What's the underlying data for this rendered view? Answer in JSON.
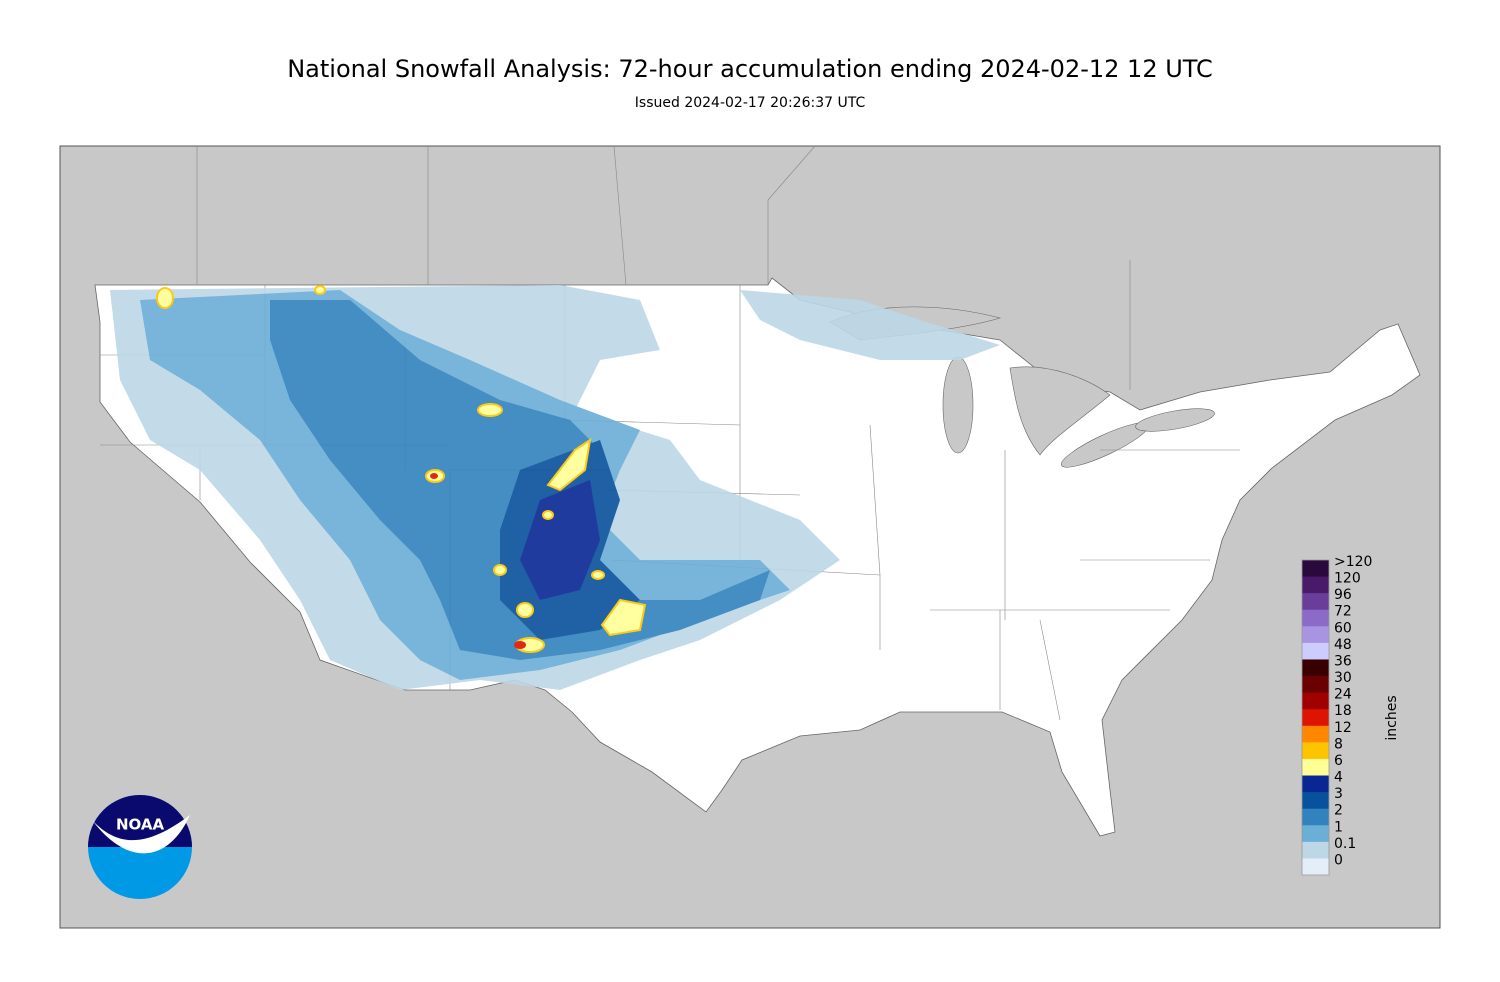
{
  "header": {
    "title": "National Snowfall Analysis: 72-hour accumulation ending 2024-02-12 12 UTC",
    "subtitle": "Issued 2024-02-17 20:26:37 UTC"
  },
  "logo": {
    "text": "NOAA"
  },
  "legend": {
    "unit": "inches",
    "items": [
      {
        "label": ">120",
        "color": "#2a0a3c"
      },
      {
        "label": "120",
        "color": "#4a1a6a"
      },
      {
        "label": "96",
        "color": "#6b3d9a"
      },
      {
        "label": "72",
        "color": "#8c6bc8"
      },
      {
        "label": "60",
        "color": "#a894e0"
      },
      {
        "label": "48",
        "color": "#ccccff"
      },
      {
        "label": "36",
        "color": "#3a0000"
      },
      {
        "label": "30",
        "color": "#6a0000"
      },
      {
        "label": "24",
        "color": "#a00000"
      },
      {
        "label": "18",
        "color": "#dc1400"
      },
      {
        "label": "12",
        "color": "#ff8700"
      },
      {
        "label": "8",
        "color": "#ffc400"
      },
      {
        "label": "6",
        "color": "#ffff96"
      },
      {
        "label": "4",
        "color": "#082694"
      },
      {
        "label": "3",
        "color": "#08519c"
      },
      {
        "label": "2",
        "color": "#3182bd"
      },
      {
        "label": "1",
        "color": "#6baed6"
      },
      {
        "label": "0.1",
        "color": "#bdd7e7"
      },
      {
        "label": "0",
        "color": "#e4eef9"
      }
    ]
  }
}
